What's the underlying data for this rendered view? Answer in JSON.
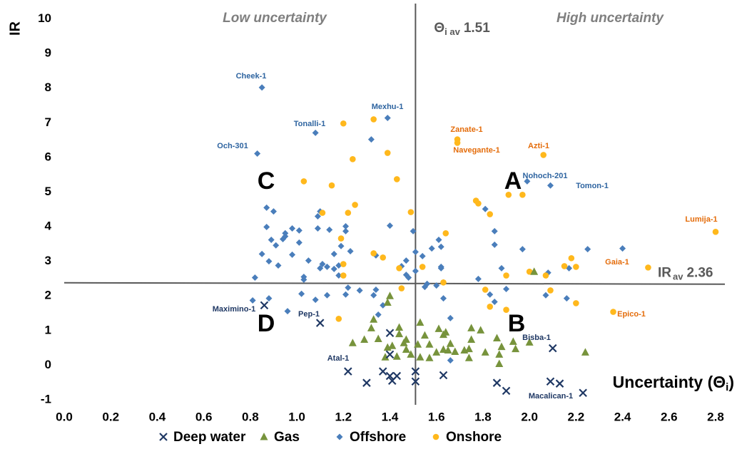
{
  "chart_data": {
    "type": "scatter",
    "ylabel": "IR",
    "xlabel": "Uncertainty (Θ",
    "xlabel_sub": "i",
    "xlabel_end": ")",
    "xlim": [
      0,
      2.8
    ],
    "ylim": [
      -1,
      10
    ],
    "xticks": [
      {
        "value": 0,
        "label": "0.0"
      },
      0.2,
      0.4,
      0.6,
      0.8,
      {
        "value": 1,
        "label": "1.0"
      },
      1.2,
      1.4,
      1.6,
      1.8,
      {
        "value": 2,
        "label": "2.0"
      },
      2.2,
      2.4,
      2.6,
      2.8
    ],
    "yticks": [
      -1,
      0,
      1,
      2,
      3,
      4,
      5,
      6,
      7,
      8,
      9,
      10
    ],
    "grid": false,
    "legend": "bottom",
    "quadrant_titles": [
      "Low uncertainty",
      "High uncertainty"
    ],
    "quadrant_letters": [
      "C",
      "A",
      "D",
      "B"
    ],
    "reference_lines": [
      {
        "axis": "x",
        "value": 1.51,
        "symbol": "Θ",
        "subscript": "i av"
      },
      {
        "axis": "y",
        "value": 2.36,
        "symbol": "IR",
        "subscript": "av"
      }
    ],
    "annotations": [
      {
        "text": "Cheek-1",
        "color": "#2e64a0"
      },
      {
        "text": "Och-301",
        "color": "#2e64a0"
      },
      {
        "text": "Tonalli-1",
        "color": "#2e64a0"
      },
      {
        "text": "Mexhu-1",
        "color": "#2e64a0"
      },
      {
        "text": "Zanate-1",
        "color": "#e46c0a"
      },
      {
        "text": "Navegante-1",
        "color": "#e46c0a"
      },
      {
        "text": "Azti-1",
        "color": "#e46c0a"
      },
      {
        "text": "Nohoch-201",
        "color": "#2e64a0"
      },
      {
        "text": "Tomon-1",
        "color": "#2e64a0"
      },
      {
        "text": "Lumija-1",
        "color": "#e46c0a"
      },
      {
        "text": "Gaia-1",
        "color": "#e46c0a"
      },
      {
        "text": "Epico-1",
        "color": "#e46c0a"
      },
      {
        "text": "Bisba-1",
        "color": "#1f3864"
      },
      {
        "text": "Macalican-1",
        "color": "#1f3864"
      },
      {
        "text": "Atal-1",
        "color": "#1f3864"
      },
      {
        "text": "Pep-1",
        "color": "#1f3864"
      },
      {
        "text": "Maximino-1",
        "color": "#1f3864"
      }
    ],
    "series": [
      {
        "name": "Deep water",
        "color": "#1f3864",
        "marker": "x",
        "x": [
          0.86,
          1.1,
          1.4,
          1.4,
          1.22,
          1.3,
          1.37,
          1.4,
          1.41,
          1.43,
          1.51,
          1.51,
          1.63,
          1.86,
          1.9,
          2.1,
          2.09,
          2.13,
          2.23
        ],
        "y": [
          1.73,
          1.22,
          0.93,
          0.31,
          -0.18,
          -0.51,
          -0.18,
          -0.31,
          -0.45,
          -0.31,
          -0.18,
          -0.47,
          -0.29,
          -0.51,
          -0.74,
          0.49,
          -0.47,
          -0.53,
          -0.8
        ]
      },
      {
        "name": "Gas",
        "color": "#77933c",
        "marker": "triangle",
        "x": [
          1.4,
          1.39,
          1.33,
          1.32,
          1.35,
          1.29,
          1.24,
          1.44,
          1.44,
          1.46,
          1.41,
          1.39,
          1.38,
          1.43,
          1.47,
          1.47,
          1.53,
          1.55,
          1.52,
          1.53,
          1.57,
          1.6,
          1.61,
          1.63,
          1.64,
          1.63,
          1.66,
          1.65,
          1.68,
          1.72,
          1.74,
          1.75,
          1.79,
          1.81,
          1.86,
          1.88,
          1.87,
          1.87,
          1.93,
          1.94,
          2.0,
          1.74,
          1.75,
          2.02,
          2.24,
          1.49,
          1.57
        ],
        "y": [
          2.0,
          1.81,
          1.32,
          1.07,
          0.76,
          0.74,
          0.64,
          1.09,
          0.9,
          0.64,
          0.56,
          0.51,
          0.23,
          0.25,
          0.74,
          0.45,
          1.23,
          0.86,
          0.6,
          0.23,
          0.6,
          0.37,
          1.05,
          0.88,
          0.95,
          0.45,
          0.62,
          0.43,
          0.39,
          0.43,
          0.47,
          1.07,
          1.01,
          0.37,
          0.78,
          0.53,
          0.31,
          0.04,
          0.68,
          0.47,
          0.66,
          0.21,
          0.74,
          2.7,
          0.37,
          0.31,
          0.21
        ]
      },
      {
        "name": "Offshore",
        "color": "#4a7ebb",
        "marker": "diamond",
        "x": [
          0.85,
          0.83,
          1.08,
          1.39,
          1.32,
          1.99,
          2.09,
          0.87,
          0.9,
          0.87,
          0.98,
          1.01,
          1.09,
          1.1,
          1.09,
          1.14,
          1.21,
          1.21,
          0.89,
          0.91,
          0.94,
          0.95,
          0.95,
          0.85,
          0.88,
          0.92,
          0.98,
          1.01,
          1.05,
          1.1,
          1.11,
          1.13,
          1.16,
          1.19,
          1.16,
          1.18,
          1.23,
          1.18,
          1.03,
          1.03,
          0.82,
          0.81,
          0.88,
          1.02,
          1.08,
          1.13,
          1.22,
          1.27,
          0.96,
          1.33,
          1.35,
          1.34,
          1.37,
          1.4,
          1.45,
          1.47,
          1.47,
          1.5,
          1.48,
          1.51,
          1.51,
          1.55,
          1.54,
          1.58,
          1.62,
          1.61,
          1.6,
          1.62,
          1.62,
          1.56,
          1.63,
          1.63,
          1.66,
          1.66,
          1.81,
          1.85,
          1.85,
          1.78,
          1.83,
          1.85,
          1.88,
          1.9,
          1.97,
          2.07,
          2.08,
          2.16,
          2.17,
          2.25,
          2.4,
          1.34,
          1.21
        ],
        "y": [
          8.02,
          6.11,
          6.71,
          7.14,
          6.52,
          5.31,
          5.19,
          4.55,
          4.44,
          3.99,
          3.95,
          3.89,
          4.3,
          4.44,
          3.95,
          3.91,
          4.01,
          3.87,
          3.62,
          3.46,
          3.64,
          3.72,
          3.81,
          3.21,
          3.0,
          2.88,
          3.19,
          3.54,
          3.02,
          2.8,
          2.92,
          2.84,
          3.21,
          3.44,
          2.78,
          2.59,
          3.29,
          2.88,
          2.55,
          2.47,
          2.53,
          1.87,
          1.93,
          2.06,
          1.89,
          2.02,
          2.24,
          2.16,
          1.56,
          2.02,
          1.46,
          2.18,
          1.73,
          4.03,
          2.86,
          2.61,
          3.02,
          3.87,
          2.53,
          3.27,
          2.72,
          2.26,
          3.15,
          3.37,
          3.42,
          3.62,
          2.3,
          2.8,
          2.84,
          2.35,
          2.39,
          1.93,
          1.36,
          0.14,
          4.51,
          3.87,
          3.48,
          2.49,
          2.04,
          1.83,
          2.8,
          2.2,
          3.35,
          2.02,
          2.67,
          1.93,
          2.8,
          3.35,
          3.37,
          3.17,
          2.04
        ]
      },
      {
        "name": "Onshore",
        "color": "#ffb81c",
        "marker": "circle",
        "x": [
          1.2,
          1.33,
          1.39,
          1.24,
          1.03,
          1.15,
          1.43,
          1.69,
          1.69,
          2.06,
          1.91,
          1.97,
          1.77,
          1.78,
          1.83,
          1.25,
          1.11,
          1.22,
          1.49,
          1.64,
          1.19,
          1.33,
          1.37,
          1.2,
          1.44,
          1.54,
          1.2,
          1.45,
          1.63,
          1.81,
          1.18,
          1.83,
          1.9,
          1.9,
          2.0,
          2.07,
          2.09,
          2.15,
          2.18,
          2.2,
          2.2,
          2.51,
          2.36,
          2.8
        ],
        "y": [
          6.98,
          7.1,
          6.13,
          5.95,
          5.31,
          5.19,
          5.37,
          6.52,
          6.42,
          6.07,
          4.92,
          4.92,
          4.75,
          4.67,
          4.36,
          4.63,
          4.4,
          4.4,
          4.42,
          3.81,
          3.66,
          3.23,
          3.11,
          2.92,
          2.8,
          2.84,
          2.59,
          2.22,
          2.39,
          2.18,
          1.34,
          1.69,
          1.6,
          2.59,
          2.7,
          2.59,
          2.16,
          2.86,
          3.09,
          2.84,
          1.79,
          2.82,
          1.54,
          3.85
        ]
      }
    ]
  }
}
